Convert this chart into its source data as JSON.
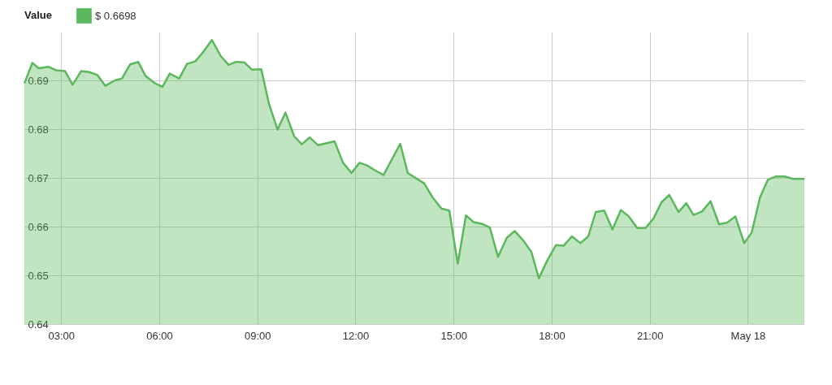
{
  "chart_data": {
    "type": "area",
    "legend_title": "Value",
    "legend": "top left",
    "grid": true,
    "x": [
      1.875,
      2.12,
      2.31,
      2.61,
      2.84,
      3.12,
      3.35,
      3.61,
      3.86,
      4.11,
      4.35,
      4.64,
      4.86,
      5.11,
      5.36,
      5.58,
      5.87,
      6.1,
      6.32,
      6.61,
      6.85,
      7.1,
      7.34,
      7.61,
      7.88,
      8.12,
      8.35,
      8.6,
      8.84,
      9.12,
      9.36,
      9.62,
      9.86,
      10.13,
      10.36,
      10.6,
      10.86,
      11.36,
      11.62,
      11.88,
      12.12,
      12.34,
      12.61,
      12.86,
      13.37,
      13.6,
      13.86,
      14.1,
      14.36,
      14.63,
      14.87,
      15.13,
      15.38,
      15.62,
      15.86,
      16.11,
      16.36,
      16.63,
      16.87,
      17.14,
      17.38,
      17.61,
      17.87,
      18.13,
      18.37,
      18.62,
      18.88,
      19.12,
      19.35,
      19.61,
      19.86,
      20.12,
      20.36,
      20.62,
      20.87,
      21.11,
      21.36,
      21.6,
      21.88,
      22.12,
      22.34,
      22.6,
      22.86,
      23.12,
      23.36,
      23.62,
      23.89,
      24.12,
      24.37,
      24.61,
      24.86,
      25.13,
      25.38,
      25.73
    ],
    "series": [
      {
        "name": "$ 0.6698",
        "color": "#5cb85c",
        "values": [
          0.6894,
          0.6936,
          0.6925,
          0.6928,
          0.6921,
          0.6919,
          0.6891,
          0.6919,
          0.6917,
          0.6911,
          0.6889,
          0.69,
          0.6904,
          0.6933,
          0.6938,
          0.6909,
          0.6894,
          0.6887,
          0.6914,
          0.6904,
          0.6934,
          0.6939,
          0.6958,
          0.6983,
          0.695,
          0.6932,
          0.6938,
          0.6937,
          0.6922,
          0.6923,
          0.6851,
          0.6799,
          0.6834,
          0.6785,
          0.6769,
          0.6783,
          0.6767,
          0.6775,
          0.6731,
          0.671,
          0.6731,
          0.6726,
          0.6715,
          0.6706,
          0.677,
          0.671,
          0.6699,
          0.6689,
          0.666,
          0.6637,
          0.6633,
          0.6524,
          0.6623,
          0.6609,
          0.6606,
          0.6598,
          0.6538,
          0.6577,
          0.6591,
          0.6571,
          0.6548,
          0.6494,
          0.6531,
          0.6562,
          0.6561,
          0.658,
          0.6566,
          0.658,
          0.663,
          0.6633,
          0.6594,
          0.6634,
          0.6621,
          0.6597,
          0.6597,
          0.6616,
          0.665,
          0.6665,
          0.663,
          0.6648,
          0.6624,
          0.6631,
          0.6652,
          0.6605,
          0.6608,
          0.6621,
          0.6566,
          0.6588,
          0.6659,
          0.6696,
          0.6703,
          0.6703,
          0.6698,
          0.6698
        ]
      }
    ],
    "xlim": [
      1.875,
      25.73
    ],
    "xticks": [
      {
        "value": 3,
        "label": "03:00"
      },
      {
        "value": 6,
        "label": "06:00"
      },
      {
        "value": 9,
        "label": "09:00"
      },
      {
        "value": 12,
        "label": "12:00"
      },
      {
        "value": 15,
        "label": "15:00"
      },
      {
        "value": 18,
        "label": "18:00"
      },
      {
        "value": 21,
        "label": "21:00"
      },
      {
        "value": 24,
        "label": "May 18"
      }
    ],
    "ylim": [
      0.64,
      0.7
    ],
    "yticks": [
      0.64,
      0.65,
      0.66,
      0.67,
      0.68,
      0.69
    ]
  }
}
